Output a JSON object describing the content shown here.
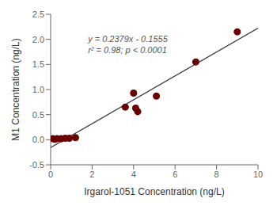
{
  "chart_data": {
    "type": "scatter",
    "xlabel": "Irgarol-1051 Concentration (ng/L)",
    "ylabel": "M1 Concentration (ng/L)",
    "series": [
      {
        "type": "scatter",
        "color": "#6B0000",
        "x": [
          0.1,
          0.2,
          0.3,
          0.5,
          0.7,
          0.9,
          1.2,
          3.6,
          4.0,
          4.1,
          4.2,
          5.1,
          7.0,
          9.0
        ],
        "values": [
          0.02,
          0.01,
          0.02,
          0.02,
          0.03,
          0.03,
          0.04,
          0.65,
          0.93,
          0.63,
          0.56,
          0.87,
          1.55,
          2.15
        ]
      },
      {
        "type": "line",
        "color": "#333333",
        "x": [
          0,
          10
        ],
        "values": [
          -0.1555,
          2.2235
        ]
      }
    ],
    "annotations": [
      {
        "text": "y = 0.2379x - 0.1555",
        "x": 1.8,
        "y": 1.95,
        "color": "#555555"
      },
      {
        "text": "r² = 0.98; p < 0.0001",
        "x": 1.8,
        "y": 1.72,
        "color": "#555555"
      }
    ],
    "xlim": [
      0,
      10
    ],
    "ylim": [
      -0.5,
      2.5
    ],
    "xticks": [
      0,
      2,
      4,
      6,
      8,
      10
    ],
    "yticks": [
      -0.5,
      {
        "value": 0,
        "label": "0.0"
      },
      0.5,
      {
        "value": 1,
        "label": "1.0"
      },
      1.5,
      {
        "value": 2,
        "label": "2.0"
      },
      2.5
    ],
    "grid": false
  }
}
